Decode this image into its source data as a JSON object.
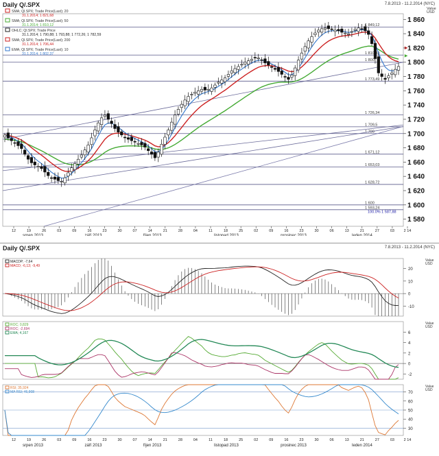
{
  "header": {
    "title": "Daily Q/.SPX",
    "range": "7.8.2013 - 11.2.2014 (NYC)"
  },
  "chart_data": [
    {
      "type": "candlestick",
      "title": "Daily Q/.SPX",
      "ylabel": "Value USD",
      "y_axis_title": "Value\nUSD",
      "ylim": [
        1570,
        1868
      ],
      "yticks": [
        1580,
        1600,
        1620,
        1640,
        1660,
        1680,
        1700,
        1720,
        1740,
        1760,
        1780,
        1800,
        1820,
        1840,
        1860
      ],
      "ytick_labels": [
        "1 580",
        "1 600",
        "1 620",
        "1 640",
        "1 660",
        "1 680",
        "1 700",
        "1 720",
        "1 740",
        "1 760",
        "1 780",
        "1 800",
        "1 820",
        "1 840",
        "1 860"
      ],
      "xticks": [
        "12",
        "19",
        "26",
        "03",
        "09",
        "16",
        "23",
        "30",
        "07",
        "14",
        "21",
        "28",
        "04",
        "11",
        "18",
        "25",
        "02",
        "09",
        "16",
        "23",
        "30",
        "06",
        "13",
        "21",
        "27",
        "03",
        "2 14"
      ],
      "months": [
        "srpen 2013",
        "září 2013",
        "říjen 2013",
        "listopad 2013",
        "prosinec 2013",
        "leden 2014"
      ],
      "legend": [
        {
          "label": "SMA; Ql.SPX; Trade Price(Last); 20",
          "sub": "31.1.2014; 1 821,68",
          "color": "#cc2222"
        },
        {
          "label": "SMA; Ql.SPX; Trade Price(Last); 50",
          "sub": "31.1.2014; 1 810,12",
          "color": "#44aa33"
        },
        {
          "label": "OHLC; Ql.SPX; Trade Price",
          "sub": "31.1.2014; 1 790,88; 1 793,88; 1 772,26; 1 782,59",
          "color": "#222222"
        },
        {
          "label": "SMA; Ql.SPX; Trade Price(Last); 200",
          "sub": "31.1.2014; 1 706,44",
          "color": "#cc2222"
        },
        {
          "label": "EMA; Ql.SPX; Trade Price(Last); 10",
          "sub": "31.1.2014; 1 802,37",
          "color": "#3377cc"
        }
      ],
      "hlines": [
        {
          "value": 1849.12,
          "label": "1 849,12"
        },
        {
          "value": 1810.08,
          "label": "1 810,08"
        },
        {
          "value": 1800,
          "label": "1 800"
        },
        {
          "value": 1773.49,
          "label": "1 773,49"
        },
        {
          "value": 1726.34,
          "label": "1 726,34"
        },
        {
          "value": 1709.5,
          "label": "1 709,5"
        },
        {
          "value": 1700,
          "label": "1 700"
        },
        {
          "value": 1671.12,
          "label": "1 671,12"
        },
        {
          "value": 1653.03,
          "label": "1 653,03"
        },
        {
          "value": 1628.72,
          "label": "1 628,72"
        },
        {
          "value": 1600,
          "label": "1 600"
        },
        {
          "value": 1593.24,
          "label": "1 593,24"
        }
      ],
      "fib_label": "100.0% 1 587,88",
      "close": [
        1698,
        1694,
        1690,
        1687,
        1683,
        1679,
        1671,
        1664,
        1659,
        1656,
        1654,
        1651,
        1646,
        1641,
        1638,
        1636,
        1634,
        1633,
        1638,
        1645,
        1652,
        1658,
        1664,
        1670,
        1677,
        1684,
        1694,
        1705,
        1715,
        1722,
        1726,
        1720,
        1714,
        1707,
        1702,
        1698,
        1694,
        1692,
        1690,
        1688,
        1686,
        1684,
        1681,
        1676,
        1671,
        1666,
        1674,
        1685,
        1695,
        1705,
        1716,
        1726,
        1734,
        1741,
        1747,
        1752,
        1755,
        1758,
        1760,
        1762,
        1761,
        1762,
        1764,
        1768,
        1772,
        1775,
        1778,
        1783,
        1788,
        1791,
        1794,
        1797,
        1800,
        1802,
        1804,
        1806,
        1806,
        1803,
        1799,
        1796,
        1793,
        1790,
        1787,
        1783,
        1779,
        1776,
        1782,
        1792,
        1803,
        1813,
        1822,
        1830,
        1836,
        1841,
        1845,
        1847,
        1848,
        1847,
        1846,
        1845,
        1844,
        1842,
        1841,
        1840,
        1843,
        1846,
        1848,
        1847,
        1844,
        1839,
        1826,
        1805,
        1785,
        1780,
        1776,
        1781,
        1785,
        1790,
        1794
      ]
    },
    {
      "type": "line",
      "title": "MACD",
      "y_axis_title": "Value\nUSD",
      "legend": [
        {
          "label": "MACDP; -7,64",
          "color": "#222222"
        },
        {
          "label": "MACD; -6,13; -9,49",
          "color": "#cc2222"
        }
      ],
      "yticks": [
        20,
        10,
        0,
        -10
      ],
      "ytick_labels": [
        "20",
        "10",
        "0",
        "-10"
      ],
      "ylim": [
        -18,
        28
      ]
    },
    {
      "type": "line",
      "title": "ROC",
      "y_axis_title": "Value\nUSD",
      "legend": [
        {
          "label": "ROC; 0,829",
          "color": "#55aa33"
        },
        {
          "label": "ROC; -2,694",
          "color": "#aa3366"
        },
        {
          "label": "EMA; 4,167",
          "color": "#228855"
        }
      ],
      "yticks": [
        6,
        4,
        2,
        0,
        -2
      ],
      "ytick_labels": [
        "6",
        "4",
        "2",
        "0",
        "-2"
      ],
      "ylim": [
        -3,
        8
      ]
    },
    {
      "type": "line",
      "title": "RSI",
      "y_axis_title": "Value\nUSD",
      "legend": [
        {
          "label": "RSI; 35,924",
          "color": "#dd7733"
        },
        {
          "label": "MA RSI; 46,908",
          "color": "#3388cc"
        }
      ],
      "yticks": [
        70,
        60,
        50,
        40,
        30
      ],
      "ytick_labels": [
        "70",
        "60",
        "50",
        "40",
        "30"
      ],
      "ylim": [
        22,
        78
      ]
    }
  ],
  "lower_header": {
    "title": "Daily Q/.SPX",
    "range": "7.8.2013 - 11.2.2014 (NYC)"
  }
}
